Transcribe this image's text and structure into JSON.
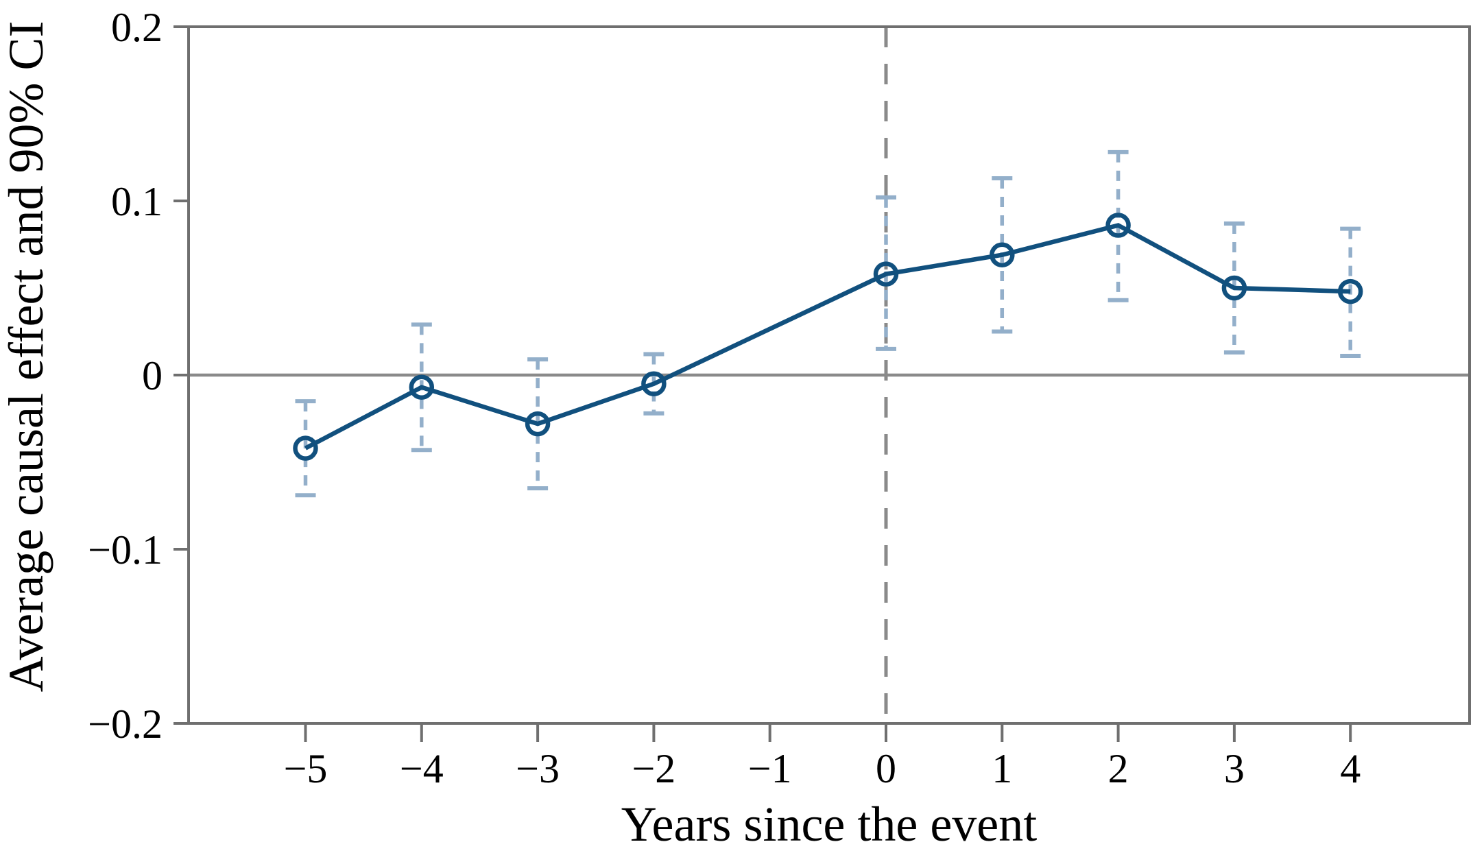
{
  "chart_data": {
    "type": "line",
    "title": "",
    "xlabel": "Years since the event",
    "ylabel": "Average causal effect and 90% CI",
    "ci_level": "90%",
    "xlim": [
      -6,
      5.05
    ],
    "ylim": [
      -0.2,
      0.2
    ],
    "grid": false,
    "legend": null,
    "zero_reference_line_y": 0,
    "event_reference_line_x": 0,
    "x_ticks": [
      -5,
      -4,
      -3,
      -2,
      -1,
      0,
      1,
      2,
      3,
      4
    ],
    "x_tick_labels": [
      "−5",
      "−4",
      "−3",
      "−2",
      "−1",
      "0",
      "1",
      "2",
      "3",
      "4"
    ],
    "y_ticks": [
      0.2,
      0.1,
      0,
      -0.1,
      -0.2
    ],
    "y_tick_labels": [
      "0.2",
      "0.1",
      "0",
      "−0.1",
      "−0.2"
    ],
    "series": [
      {
        "name": "Average causal effect",
        "marker": "open-circle",
        "points": [
          {
            "x": -5,
            "y": -0.042,
            "ci_low": -0.069,
            "ci_high": -0.015
          },
          {
            "x": -4,
            "y": -0.007,
            "ci_low": -0.043,
            "ci_high": 0.029
          },
          {
            "x": -3,
            "y": -0.028,
            "ci_low": -0.065,
            "ci_high": 0.009
          },
          {
            "x": -2,
            "y": -0.005,
            "ci_low": -0.022,
            "ci_high": 0.012
          },
          {
            "x": 0,
            "y": 0.058,
            "ci_low": 0.015,
            "ci_high": 0.102
          },
          {
            "x": 1,
            "y": 0.069,
            "ci_low": 0.025,
            "ci_high": 0.113
          },
          {
            "x": 2,
            "y": 0.086,
            "ci_low": 0.043,
            "ci_high": 0.128
          },
          {
            "x": 3,
            "y": 0.05,
            "ci_low": 0.013,
            "ci_high": 0.087
          },
          {
            "x": 4,
            "y": 0.048,
            "ci_low": 0.011,
            "ci_high": 0.084
          }
        ]
      }
    ],
    "colors": {
      "line": "#11507e",
      "marker": "#11507e",
      "ci": "#93afca",
      "zero_line": "#8a8a8a",
      "event_line": "#8a8a8a",
      "axis_box": "#6f6f6f",
      "text": "#000000"
    }
  }
}
